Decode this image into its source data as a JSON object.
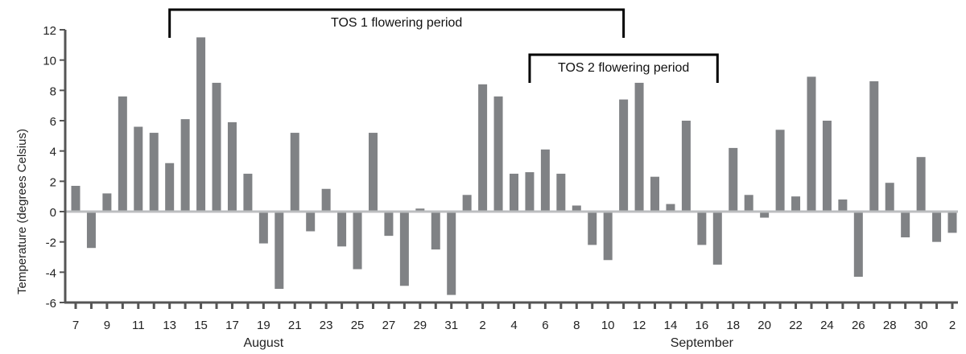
{
  "chart_data": {
    "type": "bar",
    "title": "",
    "xlabel": "",
    "ylabel": "Temperature (degrees Celsius)",
    "ylim": [
      -6,
      12
    ],
    "yticks": [
      -6,
      -4,
      -2,
      0,
      2,
      4,
      6,
      8,
      10,
      12
    ],
    "grid": false,
    "bar_color": "#808285",
    "zero_line_color": "#bcbec0",
    "axis_color": "#555555",
    "categories": [
      "Aug 7",
      "Aug 8",
      "Aug 9",
      "Aug 10",
      "Aug 11",
      "Aug 12",
      "Aug 13",
      "Aug 14",
      "Aug 15",
      "Aug 16",
      "Aug 17",
      "Aug 18",
      "Aug 19",
      "Aug 20",
      "Aug 21",
      "Aug 22",
      "Aug 23",
      "Aug 24",
      "Aug 25",
      "Aug 26",
      "Aug 27",
      "Aug 28",
      "Aug 29",
      "Aug 30",
      "Aug 31",
      "Sep 1",
      "Sep 2",
      "Sep 3",
      "Sep 4",
      "Sep 5",
      "Sep 6",
      "Sep 7",
      "Sep 8",
      "Sep 9",
      "Sep 10",
      "Sep 11",
      "Sep 12",
      "Sep 13",
      "Sep 14",
      "Sep 15",
      "Sep 16",
      "Sep 17",
      "Sep 18",
      "Sep 19",
      "Sep 20",
      "Sep 21",
      "Sep 22",
      "Sep 23",
      "Sep 24",
      "Sep 25",
      "Sep 26",
      "Sep 27",
      "Sep 28",
      "Sep 29",
      "Sep 30",
      "Oct 1",
      "Oct 2"
    ],
    "values": [
      1.7,
      -2.4,
      1.2,
      7.6,
      5.6,
      5.2,
      3.2,
      6.1,
      11.5,
      8.5,
      5.9,
      2.5,
      -2.1,
      -5.1,
      5.2,
      -1.3,
      1.5,
      -2.3,
      -3.8,
      5.2,
      -1.6,
      -4.9,
      0.2,
      -2.5,
      -5.5,
      1.1,
      8.4,
      7.6,
      2.5,
      2.6,
      4.1,
      2.5,
      0.4,
      -2.2,
      -3.2,
      7.4,
      8.5,
      2.3,
      0.5,
      6.0,
      -2.2,
      -3.5,
      4.2,
      1.1,
      -0.4,
      5.4,
      1.0,
      8.9,
      6.0,
      0.8,
      -4.3,
      8.6,
      1.9,
      -1.7,
      3.6,
      -2.0,
      -1.4
    ],
    "tick_labels": [
      "7",
      "",
      "9",
      "",
      "11",
      "",
      "13",
      "",
      "15",
      "",
      "17",
      "",
      "19",
      "",
      "21",
      "",
      "23",
      "",
      "25",
      "",
      "27",
      "",
      "29",
      "",
      "31",
      "",
      "2",
      "",
      "4",
      "",
      "6",
      "",
      "8",
      "",
      "10",
      "",
      "12",
      "",
      "14",
      "",
      "16",
      "",
      "18",
      "",
      "20",
      "",
      "22",
      "",
      "24",
      "",
      "26",
      "",
      "28",
      "",
      "30",
      "",
      "2"
    ],
    "month_labels": [
      {
        "text": "August",
        "center_category": "Aug 19"
      },
      {
        "text": "September",
        "center_category": "Sep 16"
      }
    ],
    "annotations": [
      {
        "text": "TOS 1 flowering period",
        "from": "Aug 13",
        "to": "Sep 11",
        "level": 1
      },
      {
        "text": "TOS 2 flowering period",
        "from": "Sep 5",
        "to": "Sep 17",
        "level": 2
      }
    ]
  }
}
